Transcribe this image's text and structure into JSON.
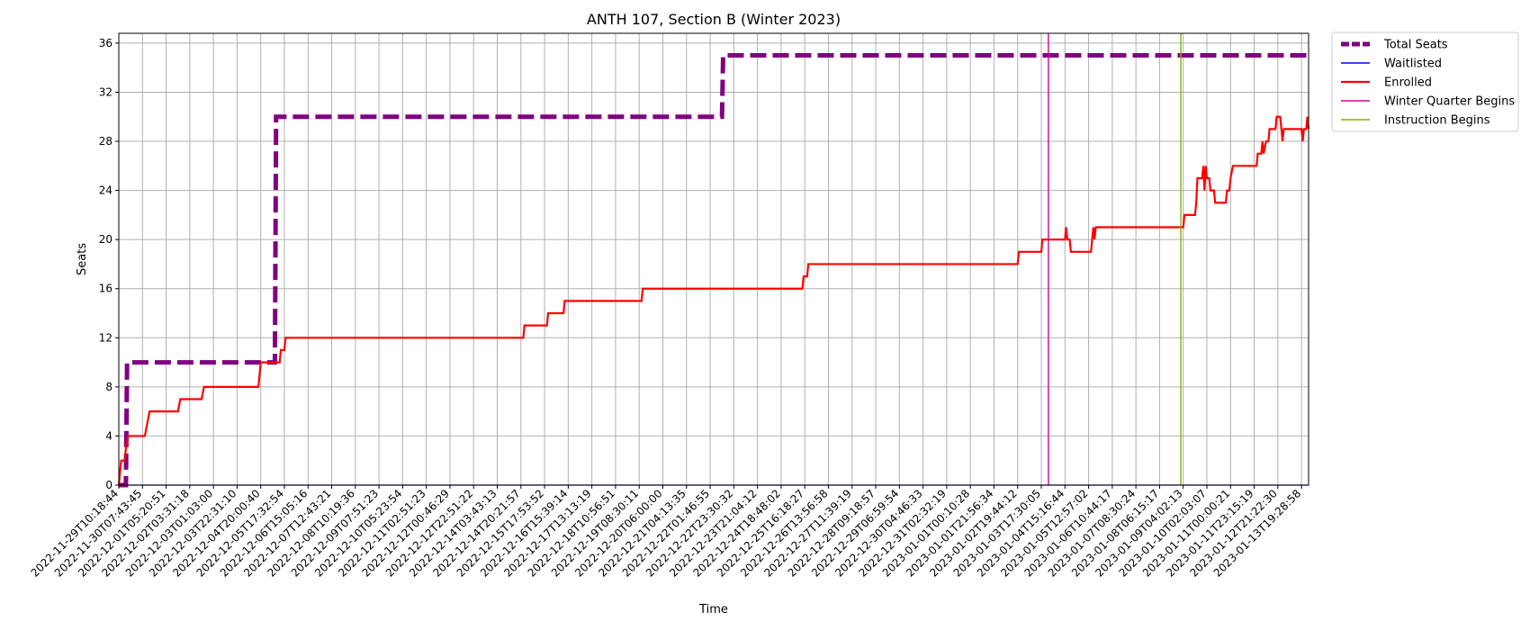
{
  "chart_data": {
    "type": "line",
    "title": "ANTH 107, Section B (Winter 2023)",
    "xlabel": "Time",
    "ylabel": "Seats",
    "ylim": [
      0,
      36.8
    ],
    "yticks": [
      0,
      4,
      8,
      12,
      16,
      20,
      24,
      28,
      32,
      36
    ],
    "grid": true,
    "legend_position": "outside-top-right",
    "x_tick_labels": [
      "2022-11-29T10:18:44",
      "2022-11-30T07:43:45",
      "2022-12-01T05:20:51",
      "2022-12-02T03:31:18",
      "2022-12-03T01:03:00",
      "2022-12-03T22:31:10",
      "2022-12-04T20:00:40",
      "2022-12-05T17:32:54",
      "2022-12-06T15:05:16",
      "2022-12-07T12:43:21",
      "2022-12-08T10:19:36",
      "2022-12-09T07:51:23",
      "2022-12-10T05:23:54",
      "2022-12-11T02:51:23",
      "2022-12-12T00:46:29",
      "2022-12-12T22:51:22",
      "2022-12-14T03:43:13",
      "2022-12-14T20:21:57",
      "2022-12-15T17:53:52",
      "2022-12-16T15:39:14",
      "2022-12-17T13:13:19",
      "2022-12-18T10:56:51",
      "2022-12-19T08:30:11",
      "2022-12-20T06:00:00",
      "2022-12-21T04:13:35",
      "2022-12-22T01:46:55",
      "2022-12-22T23:30:32",
      "2022-12-23T21:04:12",
      "2022-12-24T18:48:02",
      "2022-12-25T16:18:27",
      "2022-12-26T13:56:58",
      "2022-12-27T11:39:19",
      "2022-12-28T09:18:57",
      "2022-12-29T06:59:54",
      "2022-12-30T04:46:33",
      "2022-12-31T02:32:19",
      "2023-01-01T00:10:28",
      "2023-01-01T21:56:34",
      "2023-01-02T19:44:12",
      "2023-01-03T17:30:05",
      "2023-01-04T15:16:44",
      "2023-01-05T12:57:02",
      "2023-01-06T10:44:17",
      "2023-01-07T08:30:24",
      "2023-01-08T06:15:17",
      "2023-01-09T04:02:13",
      "2023-01-10T02:03:07",
      "2023-01-11T00:00:21",
      "2023-01-11T23:15:19",
      "2023-01-12T21:22:30",
      "2023-01-13T19:28:58"
    ],
    "x_index_range": [
      0,
      50.3
    ],
    "series": [
      {
        "name": "Total Seats",
        "color": "#800080",
        "style": "dashed",
        "points": [
          [
            0,
            0
          ],
          [
            0.3,
            0
          ],
          [
            0.35,
            10
          ],
          [
            6.6,
            10
          ],
          [
            6.65,
            30
          ],
          [
            25.5,
            30
          ],
          [
            25.55,
            35
          ],
          [
            50.3,
            35
          ]
        ]
      },
      {
        "name": "Waitlisted",
        "color": "#0000ff",
        "style": "solid",
        "points": [
          [
            0,
            0
          ],
          [
            50.3,
            0
          ]
        ]
      },
      {
        "name": "Enrolled",
        "color": "#ff0000",
        "style": "solid",
        "points": [
          [
            0,
            0
          ],
          [
            0.1,
            2
          ],
          [
            0.25,
            2
          ],
          [
            0.3,
            3
          ],
          [
            0.4,
            4
          ],
          [
            1.1,
            4
          ],
          [
            1.2,
            5
          ],
          [
            1.3,
            6
          ],
          [
            2.5,
            6
          ],
          [
            2.6,
            7
          ],
          [
            3.5,
            7
          ],
          [
            3.6,
            8
          ],
          [
            5.9,
            8
          ],
          [
            5.95,
            9
          ],
          [
            6.0,
            10
          ],
          [
            6.8,
            10
          ],
          [
            6.85,
            11
          ],
          [
            7.0,
            11
          ],
          [
            7.05,
            12
          ],
          [
            17.1,
            12
          ],
          [
            17.15,
            13
          ],
          [
            18.1,
            13
          ],
          [
            18.15,
            14
          ],
          [
            18.8,
            14
          ],
          [
            18.85,
            15
          ],
          [
            22.1,
            15
          ],
          [
            22.15,
            16
          ],
          [
            28.9,
            16
          ],
          [
            28.95,
            17
          ],
          [
            29.1,
            17
          ],
          [
            29.15,
            18
          ],
          [
            38.0,
            18
          ],
          [
            38.05,
            19
          ],
          [
            39.0,
            19
          ],
          [
            39.05,
            20
          ],
          [
            40.0,
            20
          ],
          [
            40.05,
            21
          ],
          [
            40.1,
            20
          ],
          [
            40.2,
            20
          ],
          [
            40.25,
            19
          ],
          [
            41.1,
            19
          ],
          [
            41.15,
            20
          ],
          [
            41.2,
            21
          ],
          [
            41.25,
            20
          ],
          [
            41.3,
            21
          ],
          [
            45.0,
            21
          ],
          [
            45.05,
            22
          ],
          [
            45.5,
            22
          ],
          [
            45.55,
            23
          ],
          [
            45.6,
            25
          ],
          [
            45.8,
            25
          ],
          [
            45.85,
            26
          ],
          [
            45.9,
            24
          ],
          [
            45.95,
            26
          ],
          [
            46.0,
            25
          ],
          [
            46.1,
            25
          ],
          [
            46.15,
            24
          ],
          [
            46.3,
            24
          ],
          [
            46.35,
            23
          ],
          [
            46.8,
            23
          ],
          [
            46.85,
            24
          ],
          [
            46.95,
            24
          ],
          [
            47.0,
            25
          ],
          [
            47.1,
            26
          ],
          [
            48.1,
            26
          ],
          [
            48.15,
            27
          ],
          [
            48.3,
            27
          ],
          [
            48.35,
            28
          ],
          [
            48.4,
            27
          ],
          [
            48.5,
            28
          ],
          [
            48.6,
            28
          ],
          [
            48.65,
            29
          ],
          [
            48.9,
            29
          ],
          [
            48.95,
            30
          ],
          [
            49.1,
            30
          ],
          [
            49.15,
            29
          ],
          [
            49.2,
            28
          ],
          [
            49.25,
            29
          ],
          [
            50.0,
            29
          ],
          [
            50.05,
            28
          ],
          [
            50.1,
            29
          ],
          [
            50.2,
            29
          ],
          [
            50.25,
            30
          ],
          [
            50.3,
            29
          ]
        ]
      },
      {
        "name": "Winter Quarter Begins",
        "color": "#d6009a",
        "style": "vline",
        "x": 39.3
      },
      {
        "name": "Instruction Begins",
        "color": "#88b000",
        "style": "vline",
        "x": 44.9
      }
    ]
  }
}
